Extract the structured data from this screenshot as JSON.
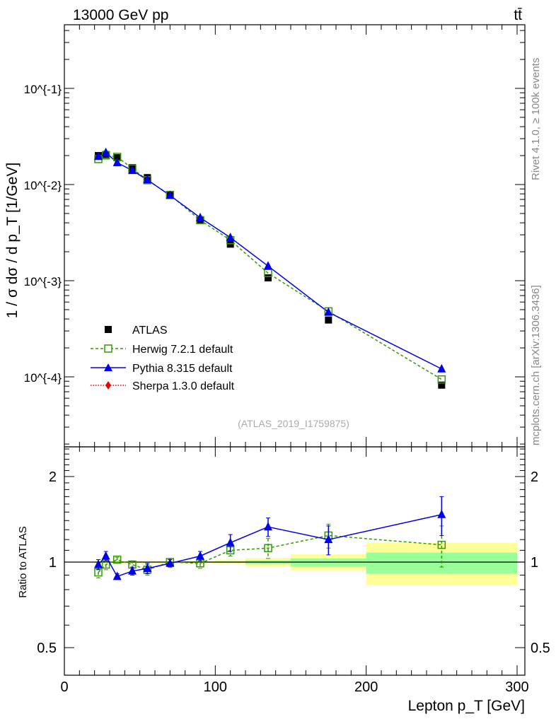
{
  "header": {
    "process": "13000 GeV pp",
    "final_state": "tt̄"
  },
  "side_labels": {
    "rivet": "Rivet 4.1.0, ≥ 100k events",
    "source": "mcplots.cern.ch [arXiv:1306.3436]"
  },
  "watermark": "(ATLAS_2019_I1759875)",
  "colors": {
    "atlas": "#000000",
    "herwig": "#339900",
    "pythia": "#0000ee",
    "sherpa": "#ee0000",
    "band_total": "#ffff99",
    "band_stat": "#99ff99"
  },
  "chart_data": [
    {
      "type": "scatter",
      "panel": "main",
      "yscale": "log",
      "xlabel": "Lepton p_T [GeV]",
      "ylabel": "1 / σ dσ / d p_T [1/GeV]",
      "xlim": [
        0,
        305
      ],
      "ylim": [
        1.9e-05,
        0.46
      ],
      "yticks": [
        {
          "v": 0.1,
          "label": "10^{-1}"
        },
        {
          "v": 0.01,
          "label": "10^{-2}"
        },
        {
          "v": 0.001,
          "label": "10^{-3}"
        },
        {
          "v": 0.0001,
          "label": "10^{-4}"
        }
      ],
      "x": [
        22.5,
        27.5,
        35,
        45,
        55,
        70,
        90,
        110,
        135,
        175,
        250
      ],
      "bin_edges": [
        20,
        25,
        30,
        40,
        50,
        60,
        80,
        100,
        120,
        150,
        200,
        300
      ],
      "series": [
        {
          "name": "ATLAS",
          "key": "atlas",
          "values": [
            0.02,
            0.0205,
            0.019,
            0.015,
            0.0118,
            0.0078,
            0.0043,
            0.0024,
            0.00107,
            0.00039,
            8.2e-05
          ]
        },
        {
          "name": "Herwig 7.2.1 default",
          "key": "herwig",
          "values": [
            0.0184,
            0.0201,
            0.0194,
            0.0147,
            0.0111,
            0.0078,
            0.00426,
            0.00264,
            0.0012,
            0.00048,
            9.4e-05
          ]
        },
        {
          "name": "Pythia 8.315 default",
          "key": "pythia",
          "values": [
            0.0196,
            0.0215,
            0.0169,
            0.014,
            0.0112,
            0.0077,
            0.00452,
            0.00281,
            0.00142,
            0.00047,
            0.000121
          ]
        },
        {
          "name": "Sherpa 1.3.0 default",
          "key": "sherpa",
          "values": []
        }
      ]
    },
    {
      "type": "scatter",
      "panel": "ratio",
      "yscale": "log",
      "ylabel": "Ratio to ATLAS",
      "xlabel": "Lepton p_T [GeV]",
      "xlim": [
        0,
        305
      ],
      "ylim": [
        0.4,
        2.55
      ],
      "xticks": [
        {
          "v": 0,
          "label": "0"
        },
        {
          "v": 100,
          "label": "100"
        },
        {
          "v": 200,
          "label": "200"
        },
        {
          "v": 300,
          "label": "300"
        }
      ],
      "yticks": [
        {
          "v": 0.5,
          "label": "0.5"
        },
        {
          "v": 1,
          "label": "1"
        },
        {
          "v": 2,
          "label": "2"
        }
      ],
      "x": [
        22.5,
        27.5,
        35,
        45,
        55,
        70,
        90,
        110,
        135,
        175,
        250
      ],
      "series": [
        {
          "name": "Herwig 7.2.1 default",
          "key": "herwig",
          "values": [
            0.92,
            0.98,
            1.02,
            0.98,
            0.94,
            1.0,
            0.99,
            1.1,
            1.12,
            1.24,
            1.15
          ],
          "err": [
            0.04,
            0.04,
            0.02,
            0.03,
            0.04,
            0.03,
            0.04,
            0.05,
            0.09,
            0.12,
            0.19
          ]
        },
        {
          "name": "Pythia 8.315 default",
          "key": "pythia",
          "values": [
            0.98,
            1.05,
            0.89,
            0.93,
            0.95,
            0.99,
            1.05,
            1.17,
            1.33,
            1.2,
            1.47
          ],
          "err": [
            0.04,
            0.04,
            0.02,
            0.03,
            0.04,
            0.03,
            0.04,
            0.08,
            0.1,
            0.14,
            0.23
          ]
        }
      ],
      "bands": {
        "bin_edges": [
          20,
          25,
          30,
          40,
          50,
          60,
          80,
          100,
          120,
          150,
          200,
          300
        ],
        "total": [
          [
            0.99,
            1.01
          ],
          [
            0.99,
            1.01
          ],
          [
            0.99,
            1.01
          ],
          [
            0.99,
            1.01
          ],
          [
            0.99,
            1.01
          ],
          [
            0.99,
            1.01
          ],
          [
            0.99,
            1.01
          ],
          [
            0.985,
            1.02
          ],
          [
            0.965,
            1.035
          ],
          [
            0.935,
            1.065
          ],
          [
            0.83,
            1.17
          ]
        ],
        "stat": [
          [
            0.997,
            1.003
          ],
          [
            0.997,
            1.003
          ],
          [
            0.997,
            1.003
          ],
          [
            0.997,
            1.003
          ],
          [
            0.997,
            1.003
          ],
          [
            0.997,
            1.003
          ],
          [
            0.996,
            1.004
          ],
          [
            0.995,
            1.006
          ],
          [
            0.985,
            1.015
          ],
          [
            0.965,
            1.03
          ],
          [
            0.91,
            1.08
          ]
        ]
      }
    }
  ]
}
